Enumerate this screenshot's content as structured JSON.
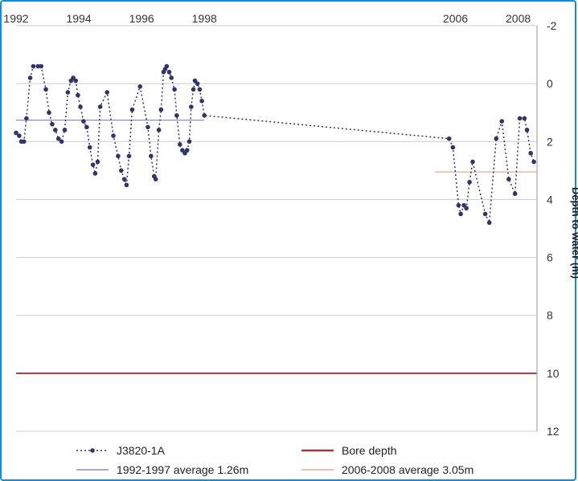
{
  "chart_data": {
    "type": "line",
    "title": "",
    "ylabel": "Depth to water (m)",
    "y_axis_side": "right",
    "y_inverted": true,
    "ylim": [
      -2,
      12
    ],
    "yticks": [
      -2,
      0,
      2,
      4,
      6,
      8,
      10,
      12
    ],
    "xlim": [
      1992,
      2008.6
    ],
    "xticks": [
      1992,
      1994,
      1996,
      1998,
      2006,
      2008
    ],
    "xticks_position": "top",
    "grid": "horizontal",
    "legend_position": "bottom",
    "series": [
      {
        "name": "J3820-1A",
        "color": "#33336b",
        "style": "dotted-with-markers",
        "points": [
          [
            1992.0,
            1.7
          ],
          [
            1992.1,
            1.8
          ],
          [
            1992.17,
            2.0
          ],
          [
            1992.25,
            2.0
          ],
          [
            1992.33,
            1.2
          ],
          [
            1992.45,
            -0.2
          ],
          [
            1992.55,
            -0.6
          ],
          [
            1992.7,
            -0.6
          ],
          [
            1992.8,
            -0.6
          ],
          [
            1992.95,
            0.2
          ],
          [
            1993.05,
            1.0
          ],
          [
            1993.15,
            1.4
          ],
          [
            1993.25,
            1.6
          ],
          [
            1993.35,
            1.9
          ],
          [
            1993.45,
            2.0
          ],
          [
            1993.55,
            1.6
          ],
          [
            1993.65,
            0.3
          ],
          [
            1993.75,
            -0.1
          ],
          [
            1993.82,
            -0.2
          ],
          [
            1993.9,
            -0.1
          ],
          [
            1993.97,
            0.4
          ],
          [
            1994.05,
            0.8
          ],
          [
            1994.15,
            1.3
          ],
          [
            1994.25,
            1.5
          ],
          [
            1994.35,
            2.2
          ],
          [
            1994.45,
            2.8
          ],
          [
            1994.52,
            3.1
          ],
          [
            1994.6,
            2.7
          ],
          [
            1994.68,
            0.8
          ],
          [
            1994.9,
            0.3
          ],
          [
            1995.1,
            1.8
          ],
          [
            1995.25,
            2.5
          ],
          [
            1995.35,
            3.0
          ],
          [
            1995.45,
            3.3
          ],
          [
            1995.52,
            3.5
          ],
          [
            1995.6,
            2.5
          ],
          [
            1995.7,
            0.9
          ],
          [
            1995.95,
            0.1
          ],
          [
            1996.2,
            1.5
          ],
          [
            1996.3,
            2.5
          ],
          [
            1996.4,
            3.2
          ],
          [
            1996.45,
            3.3
          ],
          [
            1996.55,
            1.6
          ],
          [
            1996.62,
            0.9
          ],
          [
            1996.7,
            -0.4
          ],
          [
            1996.75,
            -0.5
          ],
          [
            1996.8,
            -0.6
          ],
          [
            1996.88,
            -0.4
          ],
          [
            1996.95,
            -0.2
          ],
          [
            1997.05,
            0.2
          ],
          [
            1997.12,
            1.1
          ],
          [
            1997.22,
            2.1
          ],
          [
            1997.3,
            2.3
          ],
          [
            1997.38,
            2.4
          ],
          [
            1997.45,
            2.3
          ],
          [
            1997.52,
            2.0
          ],
          [
            1997.58,
            0.8
          ],
          [
            1997.65,
            0.2
          ],
          [
            1997.7,
            -0.1
          ],
          [
            1997.78,
            0.0
          ],
          [
            1997.85,
            0.2
          ],
          [
            1997.92,
            0.6
          ],
          [
            1998.0,
            1.1
          ],
          [
            2005.8,
            1.9
          ],
          [
            2005.92,
            2.2
          ],
          [
            2006.1,
            4.2
          ],
          [
            2006.17,
            4.5
          ],
          [
            2006.27,
            4.2
          ],
          [
            2006.35,
            4.3
          ],
          [
            2006.45,
            3.4
          ],
          [
            2006.55,
            2.7
          ],
          [
            2006.95,
            4.5
          ],
          [
            2007.08,
            4.8
          ],
          [
            2007.3,
            1.9
          ],
          [
            2007.48,
            1.3
          ],
          [
            2007.7,
            3.3
          ],
          [
            2007.9,
            3.8
          ],
          [
            2008.05,
            1.2
          ],
          [
            2008.2,
            1.2
          ],
          [
            2008.28,
            1.6
          ],
          [
            2008.4,
            2.4
          ],
          [
            2008.5,
            2.7
          ]
        ]
      },
      {
        "name": "1992-1997 average 1.26m",
        "color": "#8a8fce",
        "style": "solid",
        "x_range": [
          1992,
          1998
        ],
        "value": 1.26
      },
      {
        "name": "Bore depth",
        "color": "#a03a3a",
        "style": "solid",
        "x_range": [
          1992,
          2008.6
        ],
        "value": 10
      },
      {
        "name": "2006-2008 average 3.05m",
        "color": "#f0a58e",
        "style": "solid",
        "x_range": [
          2005.35,
          2008.6
        ],
        "value": 3.05
      }
    ]
  },
  "legend": {
    "items": [
      {
        "label": "J3820-1A",
        "marker": "dotted-with-markers",
        "color": "#33336b"
      },
      {
        "label": "Bore depth",
        "marker": "line",
        "color": "#a03a3a"
      },
      {
        "label": "1992-1997 average 1.26m",
        "marker": "line",
        "color": "#8a8fce"
      },
      {
        "label": "2006-2008 average 3.05m",
        "marker": "line",
        "color": "#f0a58e"
      }
    ]
  },
  "colors": {
    "frame_border": "#1b8bd0",
    "gridline": "#cccccc",
    "axis_line": "#9a9a9a"
  }
}
